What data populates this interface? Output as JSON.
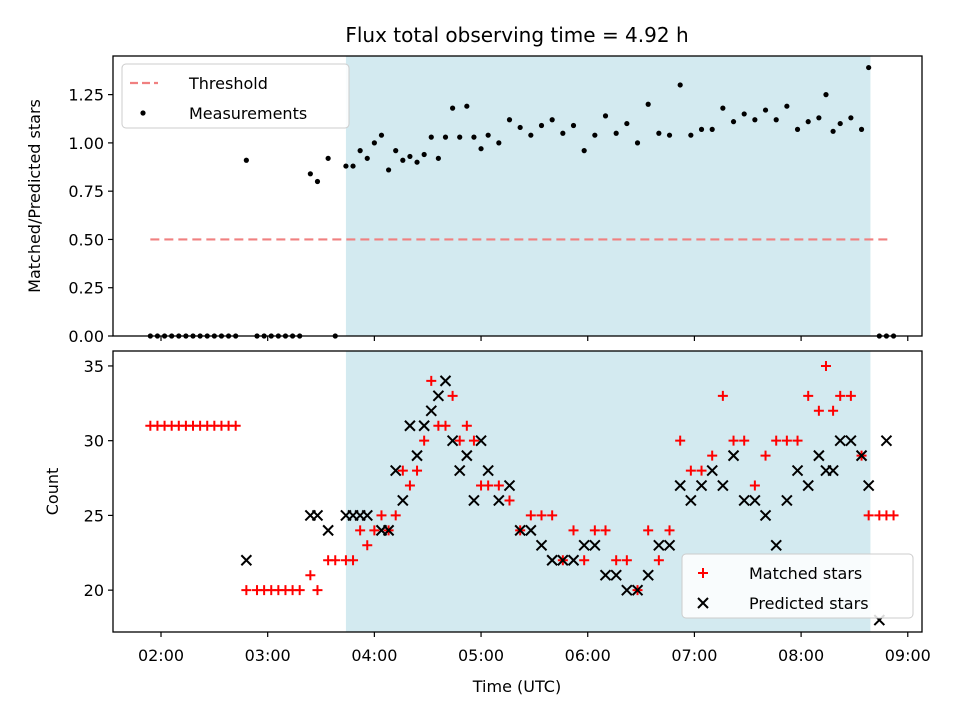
{
  "chart_data": [
    {
      "type": "scatter",
      "title": "Flux total observing time = 4.92 h",
      "xlabel": "",
      "ylabel": "Matched/Predicted stars",
      "ylim": [
        0,
        1.45
      ],
      "xlim": [
        "01:33",
        "09:08"
      ],
      "xticks": [
        "02:00",
        "03:00",
        "04:00",
        "05:00",
        "06:00",
        "07:00",
        "08:00",
        "09:00"
      ],
      "yticks": [
        "0.00",
        "0.25",
        "0.50",
        "0.75",
        "1.00",
        "1.25"
      ],
      "shaded_span": [
        "03:44",
        "08:39"
      ],
      "shade_color": "#d3eaf0",
      "legend_position": "top-left",
      "series": [
        {
          "name": "Threshold",
          "kind": "dashed-line",
          "color": "#f08080",
          "x": [
            "01:54",
            "08:49"
          ],
          "values": [
            0.5,
            0.5
          ]
        },
        {
          "name": "Measurements",
          "kind": "points",
          "color": "#000000",
          "x": [
            "01:54",
            "01:58",
            "02:02",
            "02:06",
            "02:10",
            "02:14",
            "02:18",
            "02:22",
            "02:26",
            "02:30",
            "02:34",
            "02:38",
            "02:42",
            "02:48",
            "02:54",
            "02:58",
            "03:02",
            "03:06",
            "03:10",
            "03:14",
            "03:18",
            "03:24",
            "03:28",
            "03:34",
            "03:38",
            "03:44",
            "03:48",
            "03:52",
            "03:56",
            "04:00",
            "04:04",
            "04:08",
            "04:12",
            "04:16",
            "04:20",
            "04:24",
            "04:28",
            "04:32",
            "04:36",
            "04:40",
            "04:44",
            "04:48",
            "04:52",
            "04:56",
            "05:00",
            "05:04",
            "05:10",
            "05:16",
            "05:22",
            "05:28",
            "05:34",
            "05:40",
            "05:46",
            "05:52",
            "05:58",
            "06:04",
            "06:10",
            "06:16",
            "06:22",
            "06:28",
            "06:34",
            "06:40",
            "06:46",
            "06:52",
            "06:58",
            "07:04",
            "07:10",
            "07:16",
            "07:22",
            "07:28",
            "07:34",
            "07:40",
            "07:46",
            "07:52",
            "07:58",
            "08:04",
            "08:10",
            "08:14",
            "08:18",
            "08:22",
            "08:28",
            "08:34",
            "08:38",
            "08:44",
            "08:48",
            "08:52"
          ],
          "values": [
            0,
            0,
            0,
            0,
            0,
            0,
            0,
            0,
            0,
            0,
            0,
            0,
            0,
            0.91,
            0,
            0,
            0,
            0,
            0,
            0,
            0,
            0.84,
            0.8,
            0.92,
            0,
            0.88,
            0.88,
            0.96,
            0.92,
            1.0,
            1.04,
            0.86,
            0.96,
            0.91,
            0.93,
            0.9,
            0.94,
            1.03,
            0.92,
            1.03,
            1.18,
            1.03,
            1.19,
            1.03,
            0.97,
            1.04,
            1.0,
            1.12,
            1.08,
            1.04,
            1.09,
            1.12,
            1.05,
            1.09,
            0.96,
            1.04,
            1.14,
            1.05,
            1.1,
            1.0,
            1.2,
            1.05,
            1.04,
            1.3,
            1.04,
            1.07,
            1.07,
            1.18,
            1.11,
            1.15,
            1.12,
            1.17,
            1.12,
            1.19,
            1.07,
            1.11,
            1.13,
            1.25,
            1.06,
            1.1,
            1.13,
            1.07,
            1.39,
            0,
            0,
            0
          ]
        }
      ]
    },
    {
      "type": "scatter",
      "title": "",
      "xlabel": "Time (UTC)",
      "ylabel": "Count",
      "ylim": [
        17.2,
        36
      ],
      "xlim": [
        "01:33",
        "09:08"
      ],
      "xticks": [
        "02:00",
        "03:00",
        "04:00",
        "05:00",
        "06:00",
        "07:00",
        "08:00",
        "09:00"
      ],
      "yticks": [
        "20",
        "25",
        "30",
        "35"
      ],
      "shaded_span": [
        "03:44",
        "08:39"
      ],
      "shade_color": "#d3eaf0",
      "legend_position": "bottom-right",
      "series": [
        {
          "name": "Matched stars",
          "marker": "plus",
          "color": "#ff0000",
          "x": [
            "01:54",
            "01:58",
            "02:02",
            "02:06",
            "02:10",
            "02:14",
            "02:18",
            "02:22",
            "02:26",
            "02:30",
            "02:34",
            "02:38",
            "02:42",
            "02:48",
            "02:54",
            "02:58",
            "03:02",
            "03:06",
            "03:10",
            "03:14",
            "03:18",
            "03:24",
            "03:28",
            "03:34",
            "03:38",
            "03:44",
            "03:48",
            "03:52",
            "03:56",
            "04:00",
            "04:04",
            "04:08",
            "04:12",
            "04:16",
            "04:20",
            "04:24",
            "04:28",
            "04:32",
            "04:36",
            "04:40",
            "04:44",
            "04:48",
            "04:52",
            "04:56",
            "05:00",
            "05:04",
            "05:10",
            "05:16",
            "05:22",
            "05:28",
            "05:34",
            "05:40",
            "05:46",
            "05:52",
            "05:58",
            "06:04",
            "06:10",
            "06:16",
            "06:22",
            "06:28",
            "06:34",
            "06:40",
            "06:46",
            "06:52",
            "06:58",
            "07:04",
            "07:10",
            "07:16",
            "07:22",
            "07:28",
            "07:34",
            "07:40",
            "07:46",
            "07:52",
            "07:58",
            "08:04",
            "08:10",
            "08:14",
            "08:18",
            "08:22",
            "08:28",
            "08:34",
            "08:38",
            "08:44",
            "08:48",
            "08:52"
          ],
          "values": [
            31,
            31,
            31,
            31,
            31,
            31,
            31,
            31,
            31,
            31,
            31,
            31,
            31,
            20,
            20,
            20,
            20,
            20,
            20,
            20,
            20,
            21,
            20,
            22,
            22,
            22,
            22,
            24,
            23,
            24,
            25,
            24,
            25,
            28,
            27,
            28,
            30,
            34,
            31,
            31,
            33,
            30,
            31,
            30,
            27,
            27,
            27,
            26,
            24,
            25,
            25,
            25,
            22,
            24,
            22,
            24,
            24,
            22,
            22,
            20,
            24,
            22,
            24,
            30,
            28,
            28,
            29,
            33,
            30,
            30,
            27,
            29,
            30,
            30,
            30,
            33,
            32,
            35,
            32,
            33,
            33,
            29,
            25,
            25,
            25,
            25
          ]
        },
        {
          "name": "Predicted stars",
          "marker": "x",
          "color": "#000000",
          "x": [
            "02:48",
            "03:24",
            "03:28",
            "03:34",
            "03:44",
            "03:48",
            "03:52",
            "03:56",
            "04:04",
            "04:08",
            "04:12",
            "04:16",
            "04:20",
            "04:24",
            "04:28",
            "04:32",
            "04:36",
            "04:40",
            "04:44",
            "04:48",
            "04:52",
            "04:56",
            "05:00",
            "05:04",
            "05:10",
            "05:16",
            "05:22",
            "05:28",
            "05:34",
            "05:40",
            "05:46",
            "05:52",
            "05:58",
            "06:04",
            "06:10",
            "06:16",
            "06:22",
            "06:28",
            "06:34",
            "06:40",
            "06:46",
            "06:52",
            "06:58",
            "07:04",
            "07:10",
            "07:16",
            "07:22",
            "07:28",
            "07:34",
            "07:40",
            "07:46",
            "07:52",
            "07:58",
            "08:04",
            "08:10",
            "08:14",
            "08:18",
            "08:22",
            "08:28",
            "08:34",
            "08:38",
            "08:44",
            "08:48"
          ],
          "values": [
            22,
            25,
            25,
            24,
            25,
            25,
            25,
            25,
            24,
            24,
            28,
            26,
            31,
            29,
            31,
            32,
            33,
            34,
            30,
            28,
            29,
            26,
            30,
            28,
            26,
            27,
            24,
            24,
            23,
            22,
            22,
            22,
            23,
            23,
            21,
            21,
            20,
            20,
            21,
            23,
            23,
            27,
            26,
            27,
            28,
            27,
            29,
            26,
            26,
            25,
            23,
            26,
            28,
            27,
            29,
            28,
            28,
            30,
            30,
            29,
            27,
            18,
            30
          ]
        }
      ]
    }
  ]
}
